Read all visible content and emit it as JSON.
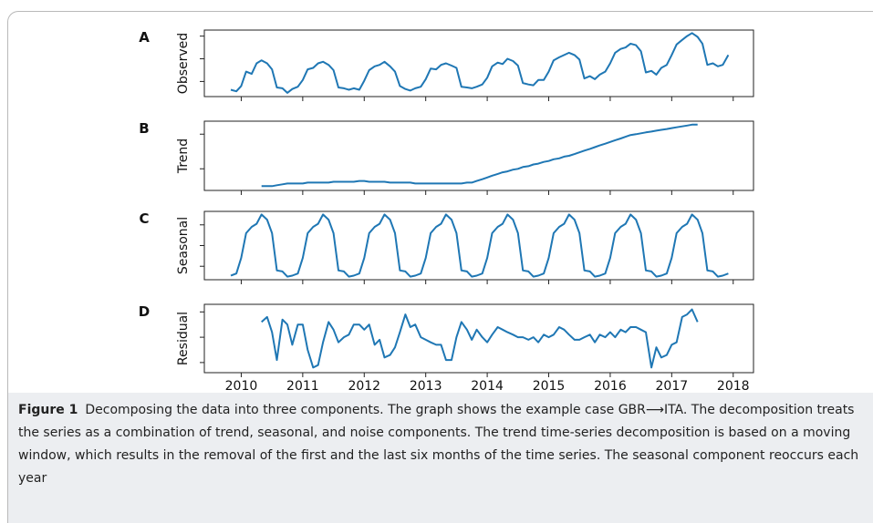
{
  "chart_data": [
    {
      "type": "line",
      "panel_label": "A",
      "ylabel": "Observed",
      "color": "#1f77b4",
      "x": [
        2009.83,
        2009.92,
        2010.0,
        2010.08,
        2010.17,
        2010.25,
        2010.33,
        2010.42,
        2010.5,
        2010.58,
        2010.67,
        2010.75,
        2010.83,
        2010.92,
        2011.0,
        2011.08,
        2011.17,
        2011.25,
        2011.33,
        2011.42,
        2011.5,
        2011.58,
        2011.67,
        2011.75,
        2011.83,
        2011.92,
        2012.0,
        2012.08,
        2012.17,
        2012.25,
        2012.33,
        2012.42,
        2012.5,
        2012.58,
        2012.67,
        2012.75,
        2012.83,
        2012.92,
        2013.0,
        2013.08,
        2013.17,
        2013.25,
        2013.33,
        2013.42,
        2013.5,
        2013.58,
        2013.67,
        2013.75,
        2013.83,
        2013.92,
        2014.0,
        2014.08,
        2014.17,
        2014.25,
        2014.33,
        2014.42,
        2014.5,
        2014.58,
        2014.67,
        2014.75,
        2014.83,
        2014.92,
        2015.0,
        2015.08,
        2015.17,
        2015.25,
        2015.33,
        2015.42,
        2015.5,
        2015.58,
        2015.67,
        2015.75,
        2015.83,
        2015.92,
        2016.0,
        2016.08,
        2016.17,
        2016.25,
        2016.33,
        2016.42,
        2016.5,
        2016.58,
        2016.67,
        2016.75,
        2016.83,
        2016.92,
        2017.0,
        2017.08,
        2017.17,
        2017.25,
        2017.33,
        2017.42,
        2017.5,
        2017.58,
        2017.67,
        2017.75,
        2017.83,
        2017.92
      ],
      "values": [
        9,
        7,
        14,
        33,
        30,
        44,
        48,
        44,
        36,
        12,
        11,
        5,
        10,
        13,
        22,
        36,
        38,
        44,
        46,
        42,
        35,
        12,
        11,
        9,
        11,
        9,
        21,
        35,
        40,
        42,
        46,
        40,
        33,
        14,
        10,
        8,
        11,
        13,
        23,
        37,
        36,
        42,
        44,
        41,
        38,
        13,
        12,
        11,
        13,
        16,
        25,
        40,
        45,
        43,
        50,
        47,
        41,
        18,
        16,
        15,
        22,
        22,
        33,
        48,
        52,
        55,
        58,
        55,
        49,
        24,
        27,
        23,
        29,
        33,
        44,
        58,
        63,
        65,
        70,
        68,
        60,
        32,
        34,
        29,
        38,
        42,
        55,
        69,
        75,
        80,
        84,
        79,
        70,
        42,
        44,
        40,
        42,
        55
      ],
      "xlim": [
        2009.4,
        2018.33
      ],
      "xticks": [
        2010,
        2011,
        2012,
        2013,
        2014,
        2015,
        2016,
        2017,
        2018
      ],
      "ylim": [
        0,
        88
      ],
      "yticks": [
        20,
        50,
        80
      ]
    },
    {
      "type": "line",
      "panel_label": "B",
      "ylabel": "Trend",
      "color": "#1f77b4",
      "x": [
        2009.83,
        2009.92,
        2010.0,
        2010.08,
        2010.17,
        2010.25,
        2010.33,
        2010.42,
        2010.5,
        2010.58,
        2010.67,
        2010.75,
        2010.83,
        2010.92,
        2011.0,
        2011.08,
        2011.17,
        2011.25,
        2011.33,
        2011.42,
        2011.5,
        2011.58,
        2011.67,
        2011.75,
        2011.83,
        2011.92,
        2012.0,
        2012.08,
        2012.17,
        2012.25,
        2012.33,
        2012.42,
        2012.5,
        2012.58,
        2012.67,
        2012.75,
        2012.83,
        2012.92,
        2013.0,
        2013.08,
        2013.17,
        2013.25,
        2013.33,
        2013.42,
        2013.5,
        2013.58,
        2013.67,
        2013.75,
        2013.83,
        2013.92,
        2014.0,
        2014.08,
        2014.17,
        2014.25,
        2014.33,
        2014.42,
        2014.5,
        2014.58,
        2014.67,
        2014.75,
        2014.83,
        2014.92,
        2015.0,
        2015.08,
        2015.17,
        2015.25,
        2015.33,
        2015.42,
        2015.5,
        2015.58,
        2015.67,
        2015.75,
        2015.83,
        2015.92,
        2016.0,
        2016.08,
        2016.17,
        2016.25,
        2016.33,
        2016.42,
        2016.5,
        2016.58,
        2016.67,
        2016.75,
        2016.83,
        2016.92,
        2017.0,
        2017.08,
        2017.17,
        2017.25,
        2017.33,
        2017.42,
        2017.5,
        2017.58,
        2017.67,
        2017.75,
        2017.83,
        2017.92
      ],
      "values": [
        null,
        null,
        null,
        null,
        null,
        null,
        20,
        20,
        20,
        21,
        22,
        23,
        23,
        23,
        23,
        24,
        24,
        24,
        24,
        24,
        25,
        25,
        25,
        25,
        25,
        26,
        26,
        25,
        25,
        25,
        25,
        24,
        24,
        24,
        24,
        24,
        23,
        23,
        23,
        23,
        23,
        23,
        23,
        23,
        23,
        23,
        24,
        24,
        26,
        28,
        30,
        32,
        34,
        36,
        37,
        39,
        40,
        42,
        43,
        45,
        46,
        48,
        49,
        51,
        52,
        54,
        55,
        57,
        59,
        61,
        63,
        65,
        67,
        69,
        71,
        73,
        75,
        77,
        79,
        80,
        81,
        82,
        83,
        84,
        85,
        86,
        87,
        88,
        89,
        90,
        91,
        91,
        null,
        null,
        null,
        null,
        null,
        null
      ],
      "xlim": [
        2009.4,
        2018.33
      ],
      "xticks": [
        2010,
        2011,
        2012,
        2013,
        2014,
        2015,
        2016,
        2017,
        2018
      ],
      "ylim": [
        15,
        95
      ],
      "yticks": [
        40,
        80
      ]
    },
    {
      "type": "line",
      "panel_label": "C",
      "ylabel": "Seasonal",
      "color": "#1f77b4",
      "x": [
        2009.83,
        2009.92,
        2010.0,
        2010.08,
        2010.17,
        2010.25,
        2010.33,
        2010.42,
        2010.5,
        2010.58,
        2010.67,
        2010.75,
        2010.83,
        2010.92,
        2011.0,
        2011.08,
        2011.17,
        2011.25,
        2011.33,
        2011.42,
        2011.5,
        2011.58,
        2011.67,
        2011.75,
        2011.83,
        2011.92,
        2012.0,
        2012.08,
        2012.17,
        2012.25,
        2012.33,
        2012.42,
        2012.5,
        2012.58,
        2012.67,
        2012.75,
        2012.83,
        2012.92,
        2013.0,
        2013.08,
        2013.17,
        2013.25,
        2013.33,
        2013.42,
        2013.5,
        2013.58,
        2013.67,
        2013.75,
        2013.83,
        2013.92,
        2014.0,
        2014.08,
        2014.17,
        2014.25,
        2014.33,
        2014.42,
        2014.5,
        2014.58,
        2014.67,
        2014.75,
        2014.83,
        2014.92,
        2015.0,
        2015.08,
        2015.17,
        2015.25,
        2015.33,
        2015.42,
        2015.5,
        2015.58,
        2015.67,
        2015.75,
        2015.83,
        2015.92,
        2016.0,
        2016.08,
        2016.17,
        2016.25,
        2016.33,
        2016.42,
        2016.5,
        2016.58,
        2016.67,
        2016.75,
        2016.83,
        2016.92,
        2017.0,
        2017.08,
        2017.17,
        2017.25,
        2017.33,
        2017.42,
        2017.5,
        2017.58,
        2017.67,
        2017.75,
        2017.83,
        2017.92
      ],
      "values": [
        -29,
        -27,
        -12,
        12,
        18,
        21,
        30,
        25,
        12,
        -24,
        -25,
        -30,
        -29,
        -27,
        -12,
        12,
        18,
        21,
        30,
        25,
        12,
        -24,
        -25,
        -30,
        -29,
        -27,
        -12,
        12,
        18,
        21,
        30,
        25,
        12,
        -24,
        -25,
        -30,
        -29,
        -27,
        -12,
        12,
        18,
        21,
        30,
        25,
        12,
        -24,
        -25,
        -30,
        -29,
        -27,
        -12,
        12,
        18,
        21,
        30,
        25,
        12,
        -24,
        -25,
        -30,
        -29,
        -27,
        -12,
        12,
        18,
        21,
        30,
        25,
        12,
        -24,
        -25,
        -30,
        -29,
        -27,
        -12,
        12,
        18,
        21,
        30,
        25,
        12,
        -24,
        -25,
        -30,
        -29,
        -27,
        -12,
        12,
        18,
        21,
        30,
        25,
        12,
        -24,
        -25,
        -30,
        -29,
        -27
      ],
      "xlim": [
        2009.4,
        2018.33
      ],
      "xticks": [
        2010,
        2011,
        2012,
        2013,
        2014,
        2015,
        2016,
        2017,
        2018
      ],
      "ylim": [
        -33,
        33
      ],
      "yticks": [
        -20,
        0,
        20
      ]
    },
    {
      "type": "line",
      "panel_label": "D",
      "ylabel": "Residual",
      "color": "#1f77b4",
      "x": [
        2009.83,
        2009.92,
        2010.0,
        2010.08,
        2010.17,
        2010.25,
        2010.33,
        2010.42,
        2010.5,
        2010.58,
        2010.67,
        2010.75,
        2010.83,
        2010.92,
        2011.0,
        2011.08,
        2011.17,
        2011.25,
        2011.33,
        2011.42,
        2011.5,
        2011.58,
        2011.67,
        2011.75,
        2011.83,
        2011.92,
        2012.0,
        2012.08,
        2012.17,
        2012.25,
        2012.33,
        2012.42,
        2012.5,
        2012.58,
        2012.67,
        2012.75,
        2012.83,
        2012.92,
        2013.0,
        2013.08,
        2013.17,
        2013.25,
        2013.33,
        2013.42,
        2013.5,
        2013.58,
        2013.67,
        2013.75,
        2013.83,
        2013.92,
        2014.0,
        2014.08,
        2014.17,
        2014.25,
        2014.33,
        2014.42,
        2014.5,
        2014.58,
        2014.67,
        2014.75,
        2014.83,
        2014.92,
        2015.0,
        2015.08,
        2015.17,
        2015.25,
        2015.33,
        2015.42,
        2015.5,
        2015.58,
        2015.67,
        2015.75,
        2015.83,
        2015.92,
        2016.0,
        2016.08,
        2016.17,
        2016.25,
        2016.33,
        2016.42,
        2016.5,
        2016.58,
        2016.67,
        2016.75,
        2016.83,
        2016.92,
        2017.0,
        2017.08,
        2017.17,
        2017.25,
        2017.33,
        2017.42,
        2017.5,
        2017.58,
        2017.67,
        2017.75,
        2017.83,
        2017.92
      ],
      "values": [
        null,
        null,
        null,
        null,
        null,
        null,
        6,
        8,
        2,
        -9,
        7,
        5,
        -3,
        5,
        5,
        -5,
        -12,
        -11,
        -2,
        6,
        3,
        -2,
        0,
        1,
        5,
        5,
        3,
        5,
        -3,
        -1,
        -8,
        -7,
        -4,
        2,
        9,
        4,
        5,
        0,
        -1,
        -2,
        -3,
        -3,
        -9,
        -9,
        0,
        6,
        3,
        -1,
        3,
        0,
        -2,
        1,
        4,
        3,
        2,
        1,
        0,
        0,
        -1,
        0,
        -2,
        1,
        0,
        1,
        4,
        3,
        1,
        -1,
        -1,
        0,
        1,
        -2,
        1,
        0,
        2,
        0,
        3,
        2,
        4,
        4,
        3,
        2,
        -12,
        -4,
        -8,
        -7,
        -3,
        -2,
        8,
        9,
        11,
        6,
        null,
        null,
        null,
        null,
        null,
        null
      ],
      "xlim": [
        2009.4,
        2018.33
      ],
      "xticks": [
        2010,
        2011,
        2012,
        2013,
        2014,
        2015,
        2016,
        2017,
        2018
      ],
      "ylim": [
        -14,
        13
      ],
      "yticks": [
        -10,
        0,
        10
      ]
    }
  ],
  "caption": {
    "label": "Figure 1",
    "text": "Decomposing the data into three components. The graph shows the example case GBR⟶ITA. The decomposition treats the series as a combination of trend, seasonal, and noise components. The trend time-series decomposition is based on a moving window, which results in the removal of the first and the last six months of the time series. The seasonal component reoccurs each year"
  }
}
